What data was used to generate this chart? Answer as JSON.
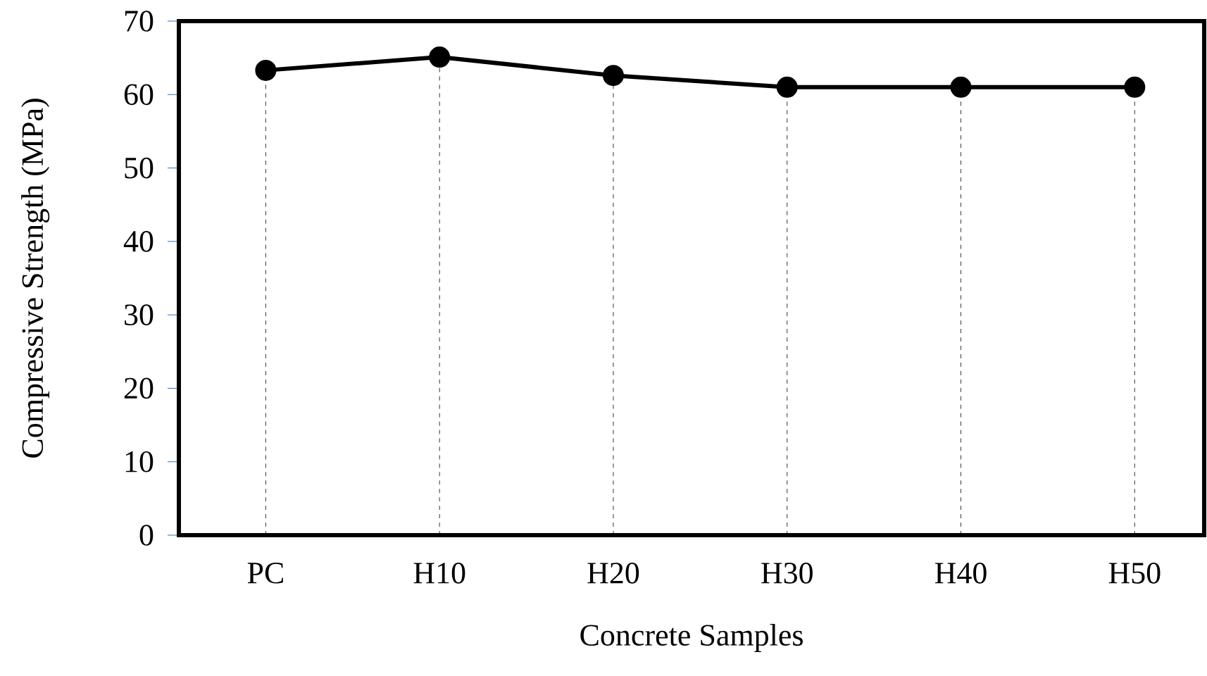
{
  "chart_data": {
    "type": "line",
    "xlabel": "Concrete Samples",
    "ylabel": "Compressive Strength (MPa)",
    "categories": [
      "PC",
      "H10",
      "H20",
      "H30",
      "H40",
      "H50"
    ],
    "series": [
      {
        "color": "#000000",
        "values": [
          63.3,
          65.1,
          62.6,
          61.0,
          61.0,
          61.0
        ]
      }
    ],
    "ylim": [
      0,
      70
    ],
    "yticks": [
      0,
      10,
      20,
      30,
      40,
      50,
      60,
      70
    ],
    "grid": "x",
    "marker": "circle",
    "line_style": "solid"
  }
}
